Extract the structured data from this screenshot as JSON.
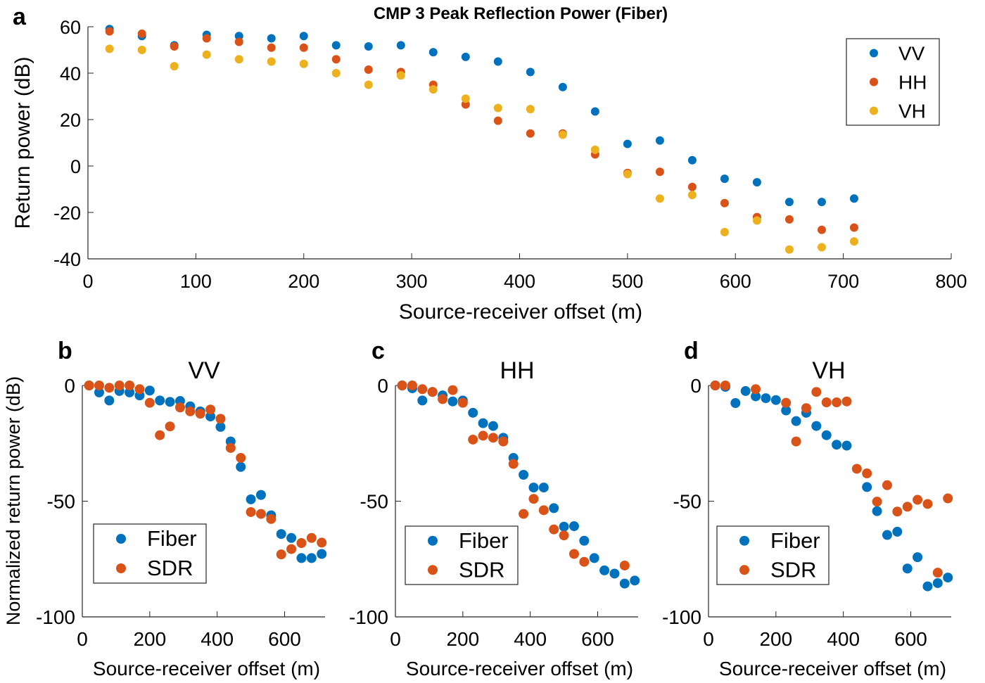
{
  "colors": {
    "VV": "#0072BD",
    "HH": "#D95319",
    "VH": "#EDB120",
    "Fiber": "#0072BD",
    "SDR": "#D95319"
  },
  "chart_data": [
    {
      "panel": "a",
      "type": "scatter",
      "title": "CMP 3 Peak Reflection Power (Fiber)",
      "xlabel": "Source-receiver offset (m)",
      "ylabel": "Return power (dB)",
      "xlim": [
        0,
        800
      ],
      "ylim": [
        -40,
        60
      ],
      "xticks": [
        0,
        100,
        200,
        300,
        400,
        500,
        600,
        700,
        800
      ],
      "yticks": [
        -40,
        -20,
        0,
        20,
        40,
        60
      ],
      "legend": "top-right",
      "x": [
        20,
        50,
        80,
        110,
        140,
        170,
        200,
        230,
        260,
        290,
        320,
        350,
        380,
        410,
        440,
        470,
        500,
        530,
        560,
        590,
        620,
        650,
        680,
        710
      ],
      "series": [
        {
          "name": "VV",
          "values": [
            59,
            56,
            52,
            56.5,
            56,
            55,
            56,
            52,
            51.5,
            52,
            49,
            47,
            45,
            40.5,
            34,
            23.5,
            9.5,
            11,
            2.5,
            -5.5,
            -7,
            -15.5,
            -15.5,
            -14
          ]
        },
        {
          "name": "HH",
          "values": [
            58,
            57,
            51.5,
            55,
            53.5,
            51,
            51,
            46,
            41.5,
            40.5,
            35,
            26.5,
            19.5,
            14,
            14,
            5,
            -3,
            -2.5,
            -9,
            -16,
            -22,
            -23,
            -27.5,
            -26.5
          ]
        },
        {
          "name": "VH",
          "values": [
            50.5,
            50,
            43,
            48,
            46,
            45,
            44,
            40,
            35,
            39,
            33,
            29,
            25,
            24.5,
            13.5,
            7,
            -3.5,
            -14,
            -12.5,
            -28.5,
            -23.5,
            -36,
            -35,
            -32.5
          ]
        }
      ]
    },
    {
      "panel": "b",
      "type": "scatter",
      "title": "VV",
      "xlabel": "Source-receiver offset (m)",
      "ylabel": "Normalized return power (dB)",
      "xlim": [
        0,
        720
      ],
      "ylim": [
        -100,
        0
      ],
      "xticks": [
        0,
        200,
        400,
        600
      ],
      "yticks": [
        -100,
        -50,
        0
      ],
      "legend": "bottom-left",
      "x": [
        20,
        50,
        80,
        110,
        140,
        170,
        200,
        230,
        260,
        290,
        320,
        350,
        380,
        410,
        440,
        470,
        500,
        530,
        560,
        590,
        620,
        650,
        680,
        710
      ],
      "series": [
        {
          "name": "Fiber",
          "values": [
            0,
            -3,
            -6.5,
            -2.4,
            -3,
            -4.3,
            -2.2,
            -6.5,
            -7.1,
            -6.7,
            -9,
            -11.2,
            -13.4,
            -17.9,
            -24.2,
            -35.2,
            -49.2,
            -47.3,
            -56.1,
            -64.2,
            -65.9,
            -74.6,
            -74.6,
            -72.8
          ]
        },
        {
          "name": "SDR",
          "values": [
            0,
            0,
            -1,
            0,
            0,
            -1.6,
            -7.5,
            -21.5,
            -17.7,
            -9.5,
            -11.2,
            -12.2,
            -10.4,
            -14.4,
            -27,
            -31.3,
            -54.7,
            -55.5,
            -57.7,
            -73,
            -70.7,
            -68.1,
            -65.9,
            -67.9
          ]
        }
      ]
    },
    {
      "panel": "c",
      "type": "scatter",
      "title": "HH",
      "xlabel": "Source-receiver offset (m)",
      "xlim": [
        0,
        720
      ],
      "ylim": [
        -100,
        0
      ],
      "xticks": [
        0,
        200,
        400,
        600
      ],
      "yticks": [
        -100,
        -50,
        0
      ],
      "legend": "bottom-left",
      "x": [
        20,
        50,
        80,
        110,
        140,
        170,
        200,
        230,
        260,
        290,
        320,
        350,
        380,
        410,
        440,
        470,
        500,
        530,
        560,
        590,
        620,
        650,
        680,
        710
      ],
      "series": [
        {
          "name": "Fiber",
          "values": [
            0,
            -1.2,
            -6.5,
            -2.8,
            -4.3,
            -6.9,
            -6.5,
            -11.8,
            -16.3,
            -17.5,
            -22.6,
            -31.3,
            -38.6,
            -44.1,
            -44.1,
            -53,
            -61,
            -60.8,
            -67.1,
            -74.6,
            -79.9,
            -81.3,
            -85.6,
            -84.3
          ]
        },
        {
          "name": "SDR",
          "values": [
            0,
            0,
            -1.6,
            -2.8,
            -5.9,
            -2,
            -7.5,
            -23.4,
            -21.7,
            -22.6,
            -24.2,
            -33.9,
            -55.5,
            -49,
            -53.9,
            -62.2,
            -64.8,
            -72.8,
            -76.2,
            null,
            null,
            null,
            -77.8,
            null
          ]
        }
      ]
    },
    {
      "panel": "d",
      "type": "scatter",
      "title": "VH",
      "xlabel": "Source-receiver offset (m)",
      "xlim": [
        0,
        720
      ],
      "ylim": [
        -100,
        0
      ],
      "xticks": [
        0,
        200,
        400,
        600
      ],
      "yticks": [
        -100,
        -50,
        0
      ],
      "legend": "bottom-left",
      "x": [
        20,
        50,
        80,
        110,
        140,
        170,
        200,
        230,
        260,
        290,
        320,
        350,
        380,
        410,
        440,
        470,
        500,
        530,
        560,
        590,
        620,
        650,
        680,
        710
      ],
      "series": [
        {
          "name": "Fiber",
          "values": [
            0,
            -0.6,
            -7.6,
            -2.4,
            -4.7,
            -5.5,
            -6.3,
            -10.8,
            -15.4,
            -11.8,
            -17.5,
            -21.5,
            -25.6,
            -26,
            null,
            -43.9,
            -54.3,
            -64.6,
            -63.2,
            -79.1,
            -74.2,
            -86.8,
            -85.4,
            -83
          ]
        },
        {
          "name": "SDR",
          "values": [
            0,
            0,
            null,
            null,
            -1.6,
            null,
            null,
            -7.5,
            -24.2,
            -9.8,
            -2.8,
            -7.3,
            -7.3,
            -6.9,
            -36,
            -38,
            -50.2,
            -43.1,
            -54.5,
            -52.4,
            -49.4,
            -51.2,
            -80.9,
            -48.8
          ]
        }
      ]
    }
  ]
}
